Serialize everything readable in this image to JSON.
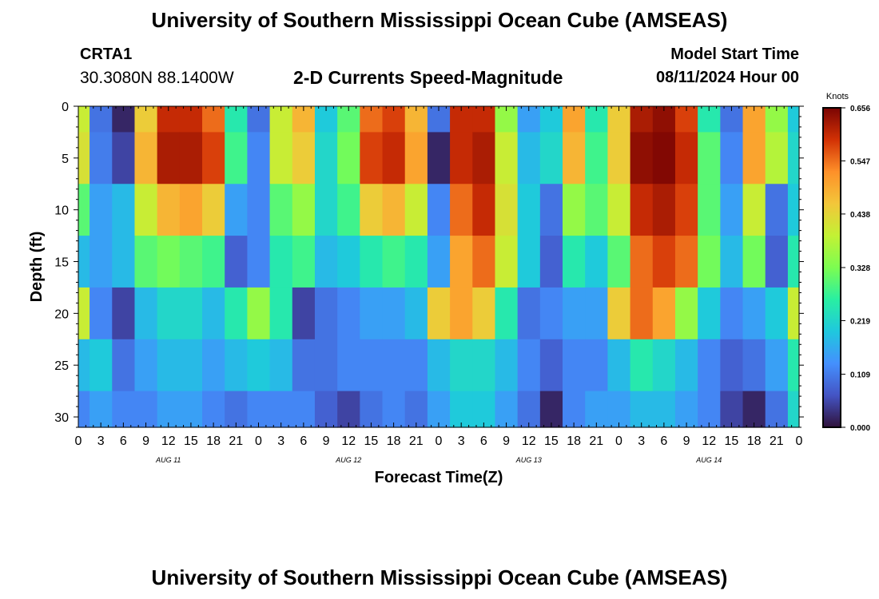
{
  "header": {
    "title": "University of Southern Mississippi Ocean Cube (AMSEAS)",
    "station_name": "CRTA1",
    "station_coords": "30.3080N  88.1400W",
    "chart_title": "2-D Currents Speed-Magnitude",
    "model_start_label": "Model Start Time",
    "model_start_value": "08/11/2024 Hour 00"
  },
  "footer": {
    "title": "University of Southern Mississippi Ocean Cube (AMSEAS)"
  },
  "chart_data": {
    "type": "heatmap",
    "title": "2-D Currents Speed-Magnitude",
    "xlabel": "Forecast Time(Z)",
    "ylabel": "Depth (ft)",
    "xlim": [
      0,
      96
    ],
    "ylim": [
      31,
      0
    ],
    "x_ticks": [
      0,
      3,
      6,
      9,
      12,
      15,
      18,
      21,
      24,
      27,
      30,
      33,
      36,
      39,
      42,
      45,
      48,
      51,
      54,
      57,
      60,
      63,
      66,
      69,
      72,
      75,
      78,
      81,
      84,
      87,
      90,
      93,
      96
    ],
    "x_tick_labels": [
      "0",
      "3",
      "6",
      "9",
      "12",
      "15",
      "18",
      "21",
      "0",
      "3",
      "6",
      "9",
      "12",
      "15",
      "18",
      "21",
      "0",
      "3",
      "6",
      "9",
      "12",
      "15",
      "18",
      "21",
      "0",
      "3",
      "6",
      "9",
      "12",
      "15",
      "18",
      "21",
      "0"
    ],
    "y_ticks": [
      0,
      5,
      10,
      15,
      20,
      25,
      30
    ],
    "y_tick_labels": [
      "0",
      "5",
      "10",
      "15",
      "20",
      "25",
      "30"
    ],
    "date_labels": [
      {
        "x": 12,
        "label": "AUG 11"
      },
      {
        "x": 36,
        "label": "AUG 12"
      },
      {
        "x": 60,
        "label": "AUG 13"
      },
      {
        "x": 84,
        "label": "AUG 14"
      }
    ],
    "colorbar": {
      "label": "Knots",
      "min": 0.0,
      "max": 0.656,
      "ticks": [
        0.0,
        0.109,
        0.219,
        0.328,
        0.438,
        0.547,
        0.656
      ],
      "tick_labels": [
        "0.000",
        "0.109",
        "0.219",
        "0.328",
        "0.438",
        "0.547",
        "0.656"
      ]
    },
    "depths": [
      0,
      5,
      10,
      15,
      20,
      25,
      30
    ],
    "times": [
      0,
      3,
      6,
      9,
      12,
      15,
      18,
      21,
      24,
      27,
      30,
      33,
      36,
      39,
      42,
      45,
      48,
      51,
      54,
      57,
      60,
      63,
      66,
      69,
      72,
      75,
      78,
      81,
      84,
      87,
      90,
      93,
      96
    ],
    "values": [
      [
        0.4,
        0.1,
        0.02,
        0.45,
        0.6,
        0.6,
        0.55,
        0.25,
        0.1,
        0.4,
        0.48,
        0.2,
        0.3,
        0.55,
        0.58,
        0.48,
        0.1,
        0.6,
        0.6,
        0.35,
        0.15,
        0.2,
        0.5,
        0.25,
        0.45,
        0.62,
        0.64,
        0.58,
        0.25,
        0.1,
        0.5,
        0.35,
        0.2
      ],
      [
        0.42,
        0.11,
        0.05,
        0.48,
        0.62,
        0.62,
        0.58,
        0.28,
        0.12,
        0.4,
        0.45,
        0.22,
        0.32,
        0.58,
        0.6,
        0.5,
        0.02,
        0.6,
        0.62,
        0.4,
        0.18,
        0.22,
        0.48,
        0.28,
        0.45,
        0.64,
        0.65,
        0.6,
        0.3,
        0.12,
        0.5,
        0.38,
        0.22
      ],
      [
        0.3,
        0.15,
        0.18,
        0.4,
        0.48,
        0.5,
        0.45,
        0.15,
        0.12,
        0.3,
        0.35,
        0.22,
        0.28,
        0.45,
        0.48,
        0.4,
        0.12,
        0.55,
        0.6,
        0.42,
        0.2,
        0.1,
        0.35,
        0.3,
        0.4,
        0.6,
        0.62,
        0.58,
        0.3,
        0.15,
        0.4,
        0.1,
        0.2
      ],
      [
        0.18,
        0.15,
        0.18,
        0.3,
        0.32,
        0.3,
        0.28,
        0.08,
        0.12,
        0.25,
        0.28,
        0.18,
        0.2,
        0.25,
        0.28,
        0.25,
        0.15,
        0.5,
        0.55,
        0.4,
        0.2,
        0.08,
        0.25,
        0.2,
        0.3,
        0.55,
        0.58,
        0.55,
        0.32,
        0.18,
        0.32,
        0.08,
        0.25
      ],
      [
        0.4,
        0.12,
        0.05,
        0.18,
        0.22,
        0.22,
        0.18,
        0.25,
        0.35,
        0.25,
        0.05,
        0.1,
        0.12,
        0.15,
        0.15,
        0.18,
        0.45,
        0.5,
        0.45,
        0.25,
        0.1,
        0.12,
        0.15,
        0.15,
        0.45,
        0.55,
        0.5,
        0.35,
        0.2,
        0.12,
        0.15,
        0.2,
        0.4
      ],
      [
        0.18,
        0.2,
        0.1,
        0.15,
        0.18,
        0.18,
        0.15,
        0.18,
        0.2,
        0.18,
        0.1,
        0.1,
        0.12,
        0.12,
        0.12,
        0.12,
        0.18,
        0.22,
        0.22,
        0.18,
        0.12,
        0.08,
        0.12,
        0.12,
        0.18,
        0.25,
        0.22,
        0.18,
        0.12,
        0.08,
        0.1,
        0.15,
        0.25
      ],
      [
        0.12,
        0.15,
        0.12,
        0.12,
        0.15,
        0.15,
        0.12,
        0.1,
        0.12,
        0.12,
        0.12,
        0.08,
        0.05,
        0.1,
        0.12,
        0.1,
        0.15,
        0.2,
        0.2,
        0.15,
        0.1,
        0.02,
        0.12,
        0.15,
        0.15,
        0.18,
        0.18,
        0.15,
        0.12,
        0.05,
        0.02,
        0.1,
        0.22
      ]
    ]
  }
}
